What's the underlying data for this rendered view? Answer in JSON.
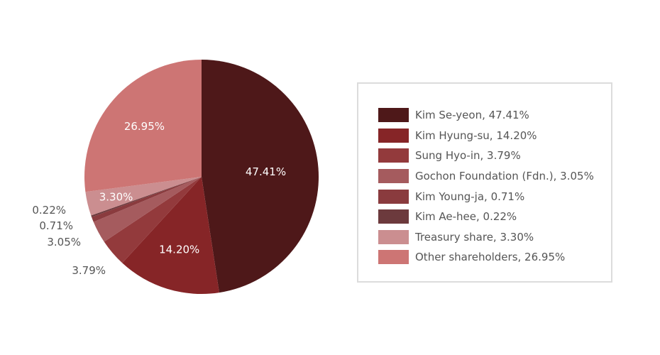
{
  "chart_data": {
    "type": "pie",
    "title": "",
    "legend_position": "right",
    "slices": [
      {
        "label": "Kim Se-yeon",
        "value": 47.41,
        "display": "47.41%",
        "legend": "Kim Se-yeon, 47.41%",
        "color": "#4e1819",
        "label_color": "#ffffff",
        "label_placement": "inside"
      },
      {
        "label": "Kim Hyung-su",
        "value": 14.2,
        "display": "14.20%",
        "legend": "Kim Hyung-su, 14.20%",
        "color": "#862527",
        "label_color": "#ffffff",
        "label_placement": "inside"
      },
      {
        "label": "Sung Hyo-in",
        "value": 3.79,
        "display": "3.79%",
        "legend": "Sung Hyo-in, 3.79%",
        "color": "#933a3c",
        "label_color": "#555555",
        "label_placement": "outside"
      },
      {
        "label": "Gochon Foundation (Fdn.)",
        "value": 3.05,
        "display": "3.05%",
        "legend": "Gochon Foundation (Fdn.), 3.05%",
        "color": "#a55b5e",
        "label_color": "#555555",
        "label_placement": "outside"
      },
      {
        "label": "Kim Young-ja",
        "value": 0.71,
        "display": "0.71%",
        "legend": "Kim Young-ja, 0.71%",
        "color": "#8a3b3e",
        "label_color": "#555555",
        "label_placement": "outside"
      },
      {
        "label": "Kim Ae-hee",
        "value": 0.22,
        "display": "0.22%",
        "legend": "Kim Ae-hee, 0.22%",
        "color": "#6c3a3d",
        "label_color": "#555555",
        "label_placement": "outside"
      },
      {
        "label": "Treasury share",
        "value": 3.3,
        "display": "3.30%",
        "legend": "Treasury share, 3.30%",
        "color": "#cb8e90",
        "label_color": "#ffffff",
        "label_placement": "inside"
      },
      {
        "label": "Other shareholders",
        "value": 26.95,
        "display": "26.95%",
        "legend": "Other shareholders, 26.95%",
        "color": "#cd7574",
        "label_color": "#ffffff",
        "label_placement": "inside"
      }
    ]
  }
}
